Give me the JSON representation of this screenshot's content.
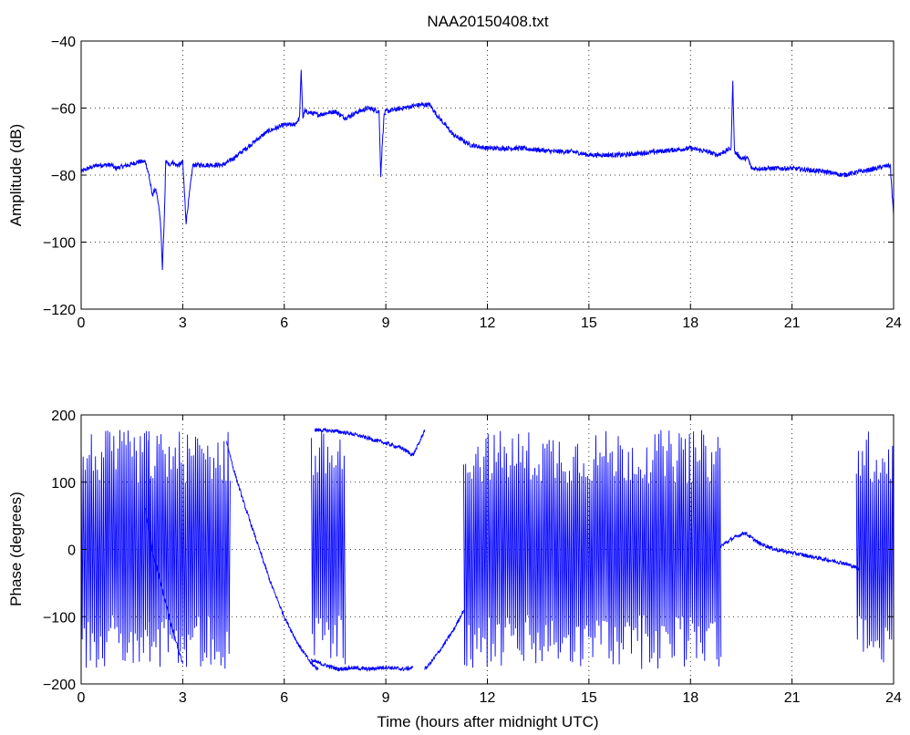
{
  "chart_data": [
    {
      "type": "line",
      "title": "NAA20150408.txt",
      "xlabel": "",
      "ylabel": "Amplitude (dB)",
      "xlim": [
        0,
        24
      ],
      "ylim": [
        -120,
        -40
      ],
      "xticks": [
        0,
        3,
        6,
        9,
        12,
        15,
        18,
        21,
        24
      ],
      "yticks": [
        -120,
        -100,
        -80,
        -60,
        -40
      ],
      "grid": true,
      "color": "#0000ff",
      "series": [
        {
          "x": [
            0,
            0.2,
            0.5,
            0.9,
            1.0,
            1.4,
            1.7,
            1.9,
            2.0,
            2.05,
            2.1,
            2.2,
            2.3,
            2.35,
            2.4,
            2.45,
            2.5,
            2.6,
            2.7,
            2.8,
            2.9,
            3.0,
            3.1,
            3.3,
            3.6,
            3.9,
            4.2,
            4.5,
            5.0,
            5.5,
            6.0,
            6.3,
            6.45,
            6.5,
            6.55,
            6.6,
            7.0,
            7.5,
            7.8,
            8.2,
            8.5,
            8.8,
            8.85,
            8.9,
            8.95,
            9.0,
            9.5,
            10.0,
            10.3,
            10.5,
            11.0,
            11.5,
            12.0,
            13.0,
            14.0,
            14.5,
            15.0,
            16.0,
            17.0,
            18.0,
            18.5,
            18.8,
            19.0,
            19.2,
            19.25,
            19.3,
            19.5,
            19.7,
            19.8,
            20.0,
            21.0,
            22.0,
            22.5,
            23.0,
            23.5,
            23.9,
            24.0
          ],
          "y": [
            -79,
            -78,
            -77,
            -77,
            -78,
            -77,
            -76,
            -76,
            -80,
            -83,
            -86,
            -84,
            -90,
            -95,
            -108,
            -95,
            -76,
            -77,
            -76,
            -77,
            -77,
            -76,
            -94,
            -77,
            -77,
            -77,
            -77,
            -75,
            -71,
            -67,
            -65,
            -65,
            -63,
            -49,
            -63,
            -61,
            -62,
            -61,
            -63,
            -61,
            -60,
            -61,
            -80,
            -70,
            -62,
            -61,
            -60,
            -59,
            -59,
            -62,
            -68,
            -71,
            -72,
            -72,
            -73,
            -73,
            -74,
            -74,
            -73,
            -72,
            -73,
            -74,
            -73,
            -72,
            -52,
            -73,
            -75,
            -75,
            -78,
            -78,
            -78,
            -79,
            -80,
            -79,
            -78,
            -77,
            -92
          ]
        }
      ]
    },
    {
      "type": "line",
      "title": "",
      "xlabel": "Time (hours after midnight UTC)",
      "ylabel": "Phase (degrees)",
      "xlim": [
        0,
        24
      ],
      "ylim": [
        -200,
        200
      ],
      "xticks": [
        0,
        3,
        6,
        9,
        12,
        15,
        18,
        21,
        24
      ],
      "yticks": [
        -200,
        -100,
        0,
        100,
        200
      ],
      "grid": true,
      "color": "#0000ff",
      "segments": [
        {
          "kind": "wrap",
          "x": [
            0.0,
            2.05
          ],
          "ymin": -178,
          "ymax": 178
        },
        {
          "kind": "line",
          "x": [
            1.9,
            2.1,
            2.4,
            2.7,
            3.0
          ],
          "y": [
            60,
            0,
            -60,
            -120,
            -170
          ]
        },
        {
          "kind": "wrap",
          "x": [
            2.0,
            4.4
          ],
          "ymin": -178,
          "ymax": 178
        },
        {
          "kind": "line",
          "x": [
            4.3,
            4.5,
            4.8,
            5.2,
            5.6,
            6.0,
            6.4,
            6.8,
            7.0
          ],
          "y": [
            160,
            120,
            70,
            10,
            -50,
            -100,
            -140,
            -170,
            -178
          ]
        },
        {
          "kind": "wrap",
          "x": [
            6.8,
            7.8
          ],
          "ymin": -178,
          "ymax": 178
        },
        {
          "kind": "line",
          "x": [
            6.8,
            7.2,
            7.6,
            8.0,
            8.5,
            9.0,
            9.5,
            9.8
          ],
          "y": [
            -165,
            -172,
            -178,
            -176,
            -178,
            -175,
            -178,
            -176
          ]
        },
        {
          "kind": "line",
          "x": [
            6.9,
            7.5,
            8.0,
            8.5,
            9.0,
            9.5,
            9.8,
            10.0,
            10.15
          ],
          "y": [
            178,
            176,
            172,
            165,
            158,
            150,
            140,
            160,
            178
          ]
        },
        {
          "kind": "line",
          "x": [
            10.15,
            10.3,
            10.6,
            11.0,
            11.3
          ],
          "y": [
            -178,
            -170,
            -150,
            -120,
            -90
          ]
        },
        {
          "kind": "wrap",
          "x": [
            11.3,
            18.9
          ],
          "ymin": -178,
          "ymax": 178
        },
        {
          "kind": "line",
          "x": [
            18.9,
            19.2,
            19.6,
            20.0,
            20.5,
            21.0,
            21.5,
            22.0,
            22.5,
            22.8,
            23.0
          ],
          "y": [
            5,
            15,
            25,
            10,
            0,
            -5,
            -10,
            -15,
            -20,
            -25,
            -30
          ]
        },
        {
          "kind": "wrap",
          "x": [
            22.9,
            24.0
          ],
          "ymin": -178,
          "ymax": 178
        }
      ]
    }
  ]
}
